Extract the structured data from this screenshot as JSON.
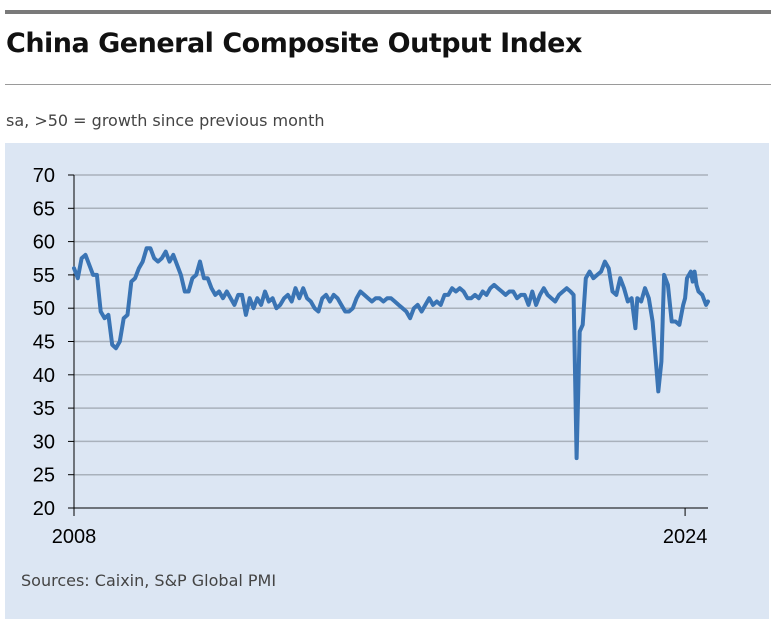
{
  "header": {
    "title": "China General Composite Output Index",
    "subtitle": "sa, >50 = growth since previous month"
  },
  "footer": {
    "source": "Sources: Caixin, S&P Global PMI"
  },
  "colors": {
    "line": "#3a74b4",
    "panel": "#dce6f3",
    "grid": "#a9b1bb",
    "axis": "#000000"
  },
  "chart_data": {
    "type": "line",
    "title": "China General Composite Output Index",
    "subtitle": "sa, >50 = growth since previous month",
    "xlabel": "",
    "ylabel": "",
    "ylim": [
      20,
      70
    ],
    "xlim": [
      2008.0,
      2024.6
    ],
    "yticks": [
      20,
      25,
      30,
      35,
      40,
      45,
      50,
      55,
      60,
      65,
      70
    ],
    "xtick_labels": [
      {
        "value": 2008,
        "label": "2008"
      },
      {
        "value": 2024,
        "label": "2024"
      }
    ],
    "grid": true,
    "legend": "none",
    "series": [
      {
        "name": "China General Composite Output Index",
        "points": [
          [
            2008.0,
            56.0
          ],
          [
            2008.1,
            54.5
          ],
          [
            2008.2,
            57.5
          ],
          [
            2008.3,
            58.0
          ],
          [
            2008.4,
            56.5
          ],
          [
            2008.5,
            55.0
          ],
          [
            2008.6,
            55.0
          ],
          [
            2008.7,
            49.5
          ],
          [
            2008.8,
            48.5
          ],
          [
            2008.9,
            49.0
          ],
          [
            2009.0,
            44.5
          ],
          [
            2009.1,
            44.0
          ],
          [
            2009.2,
            45.0
          ],
          [
            2009.3,
            48.5
          ],
          [
            2009.4,
            49.0
          ],
          [
            2009.5,
            54.0
          ],
          [
            2009.6,
            54.5
          ],
          [
            2009.7,
            56.0
          ],
          [
            2009.8,
            57.0
          ],
          [
            2009.9,
            59.0
          ],
          [
            2010.0,
            59.0
          ],
          [
            2010.1,
            57.5
          ],
          [
            2010.2,
            57.0
          ],
          [
            2010.3,
            57.5
          ],
          [
            2010.4,
            58.5
          ],
          [
            2010.5,
            57.0
          ],
          [
            2010.6,
            58.0
          ],
          [
            2010.7,
            56.5
          ],
          [
            2010.8,
            55.0
          ],
          [
            2010.9,
            52.5
          ],
          [
            2011.0,
            52.5
          ],
          [
            2011.1,
            54.5
          ],
          [
            2011.2,
            55.0
          ],
          [
            2011.3,
            57.0
          ],
          [
            2011.4,
            54.5
          ],
          [
            2011.5,
            54.5
          ],
          [
            2011.6,
            53.0
          ],
          [
            2011.7,
            52.0
          ],
          [
            2011.8,
            52.5
          ],
          [
            2011.9,
            51.5
          ],
          [
            2012.0,
            52.5
          ],
          [
            2012.1,
            51.5
          ],
          [
            2012.2,
            50.5
          ],
          [
            2012.3,
            52.0
          ],
          [
            2012.4,
            52.0
          ],
          [
            2012.5,
            49.0
          ],
          [
            2012.6,
            51.5
          ],
          [
            2012.7,
            50.0
          ],
          [
            2012.8,
            51.5
          ],
          [
            2012.9,
            50.5
          ],
          [
            2013.0,
            52.5
          ],
          [
            2013.1,
            51.0
          ],
          [
            2013.2,
            51.5
          ],
          [
            2013.3,
            50.0
          ],
          [
            2013.4,
            50.5
          ],
          [
            2013.5,
            51.5
          ],
          [
            2013.6,
            52.0
          ],
          [
            2013.7,
            51.0
          ],
          [
            2013.8,
            53.0
          ],
          [
            2013.9,
            51.5
          ],
          [
            2014.0,
            53.0
          ],
          [
            2014.1,
            51.5
          ],
          [
            2014.2,
            51.0
          ],
          [
            2014.3,
            50.0
          ],
          [
            2014.4,
            49.5
          ],
          [
            2014.5,
            51.5
          ],
          [
            2014.6,
            52.0
          ],
          [
            2014.7,
            51.0
          ],
          [
            2014.8,
            52.0
          ],
          [
            2014.9,
            51.5
          ],
          [
            2015.0,
            50.5
          ],
          [
            2015.1,
            49.5
          ],
          [
            2015.2,
            49.5
          ],
          [
            2015.3,
            50.0
          ],
          [
            2015.4,
            51.5
          ],
          [
            2015.5,
            52.5
          ],
          [
            2015.6,
            52.0
          ],
          [
            2015.7,
            51.5
          ],
          [
            2015.8,
            51.0
          ],
          [
            2015.9,
            51.5
          ],
          [
            2016.0,
            51.5
          ],
          [
            2016.1,
            51.0
          ],
          [
            2016.2,
            51.5
          ],
          [
            2016.3,
            51.5
          ],
          [
            2016.4,
            51.0
          ],
          [
            2016.5,
            50.5
          ],
          [
            2016.6,
            50.0
          ],
          [
            2016.7,
            49.5
          ],
          [
            2016.8,
            48.5
          ],
          [
            2016.9,
            50.0
          ],
          [
            2017.0,
            50.5
          ],
          [
            2017.1,
            49.5
          ],
          [
            2017.2,
            50.5
          ],
          [
            2017.3,
            51.5
          ],
          [
            2017.4,
            50.5
          ],
          [
            2017.5,
            51.0
          ],
          [
            2017.6,
            50.5
          ],
          [
            2017.7,
            52.0
          ],
          [
            2017.8,
            52.0
          ],
          [
            2017.9,
            53.0
          ],
          [
            2018.0,
            52.5
          ],
          [
            2018.1,
            53.0
          ],
          [
            2018.2,
            52.5
          ],
          [
            2018.3,
            51.5
          ],
          [
            2018.4,
            51.5
          ],
          [
            2018.5,
            52.0
          ],
          [
            2018.6,
            51.5
          ],
          [
            2018.7,
            52.5
          ],
          [
            2018.8,
            52.0
          ],
          [
            2018.9,
            53.0
          ],
          [
            2019.0,
            53.5
          ],
          [
            2019.1,
            53.0
          ],
          [
            2019.2,
            52.5
          ],
          [
            2019.3,
            52.0
          ],
          [
            2019.4,
            52.5
          ],
          [
            2019.5,
            52.5
          ],
          [
            2019.6,
            51.5
          ],
          [
            2019.7,
            52.0
          ],
          [
            2019.8,
            52.0
          ],
          [
            2019.9,
            50.5
          ],
          [
            2020.0,
            52.5
          ],
          [
            2020.1,
            50.5
          ],
          [
            2020.2,
            52.0
          ],
          [
            2020.3,
            53.0
          ],
          [
            2020.4,
            52.0
          ],
          [
            2020.5,
            51.5
          ],
          [
            2020.6,
            51.0
          ],
          [
            2020.7,
            52.0
          ],
          [
            2020.8,
            52.5
          ],
          [
            2020.9,
            53.0
          ],
          [
            2021.0,
            52.5
          ],
          [
            2021.08,
            52.0
          ],
          [
            2021.16,
            27.5
          ],
          [
            2021.24,
            46.5
          ],
          [
            2021.32,
            47.5
          ],
          [
            2021.4,
            54.5
          ],
          [
            2021.5,
            55.5
          ],
          [
            2021.6,
            54.5
          ],
          [
            2021.7,
            55.0
          ],
          [
            2021.8,
            55.5
          ],
          [
            2021.9,
            57.0
          ],
          [
            2022.0,
            56.0
          ],
          [
            2022.1,
            52.5
          ],
          [
            2022.2,
            52.0
          ],
          [
            2022.3,
            54.5
          ],
          [
            2022.4,
            53.0
          ],
          [
            2022.5,
            51.0
          ],
          [
            2022.6,
            51.5
          ],
          [
            2022.7,
            47.0
          ],
          [
            2022.75,
            51.5
          ],
          [
            2022.85,
            51.0
          ],
          [
            2022.95,
            53.0
          ],
          [
            2023.05,
            51.5
          ],
          [
            2023.15,
            48.0
          ],
          [
            2023.25,
            41.0
          ],
          [
            2023.3,
            37.5
          ],
          [
            2023.38,
            42.0
          ],
          [
            2023.45,
            55.0
          ],
          [
            2023.55,
            53.5
          ],
          [
            2023.65,
            48.0
          ],
          [
            2023.75,
            48.0
          ],
          [
            2023.85,
            47.5
          ],
          [
            2023.95,
            50.5
          ],
          [
            2024.0,
            51.5
          ],
          [
            2024.05,
            54.5
          ],
          [
            2024.15,
            55.5
          ],
          [
            2024.2,
            54.0
          ],
          [
            2024.25,
            55.5
          ],
          [
            2024.3,
            53.5
          ],
          [
            2024.35,
            52.5
          ],
          [
            2024.45,
            52.0
          ],
          [
            2024.55,
            50.5
          ],
          [
            2024.6,
            51.0
          ]
        ]
      }
    ]
  }
}
